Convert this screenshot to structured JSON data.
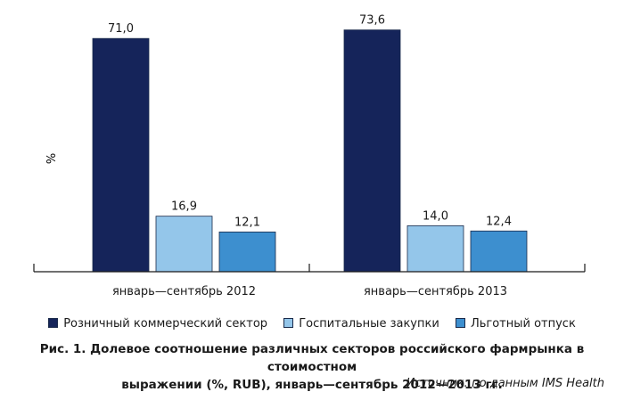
{
  "colors": {
    "retail": "#15245a",
    "hospital": "#94c6ea",
    "benefit": "#3d8fcf",
    "axis": "#1a1a1a",
    "bar_border": "#1a2a4a"
  },
  "chart_data": {
    "type": "bar",
    "ylabel": "%",
    "xlabel": "",
    "ylim": [
      0,
      80
    ],
    "grid": false,
    "legend_position": "bottom",
    "categories": [
      "январь—сентябрь 2012",
      "январь—сентябрь 2013"
    ],
    "series": [
      {
        "name": "Розничный коммерческий сектор",
        "values": [
          71.0,
          73.6
        ],
        "labels": [
          "71,0",
          "73,6"
        ],
        "color": "#15245a"
      },
      {
        "name": "Госпитальные закупки",
        "values": [
          16.9,
          14.0
        ],
        "labels": [
          "16,9",
          "14,0"
        ],
        "color": "#94c6ea"
      },
      {
        "name": "Льготный отпуск",
        "values": [
          12.1,
          12.4
        ],
        "labels": [
          "12,1",
          "12,4"
        ],
        "color": "#3d8fcf"
      }
    ]
  },
  "caption": {
    "line1": "Рис. 1. Долевое соотношение различных секторов российского фармрынка в стоимостном",
    "line2": "выражении (%, RUB), январь—сентябрь 2012—2013 гг."
  },
  "source": "Источник: по данным IMS Health"
}
